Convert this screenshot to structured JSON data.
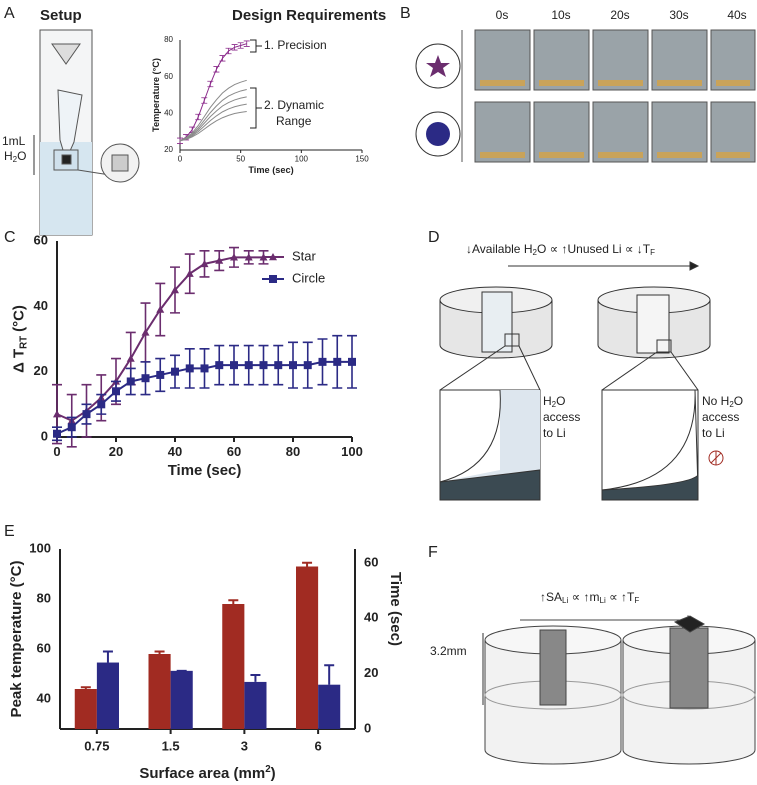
{
  "panels": {
    "labels": [
      "A",
      "B",
      "C",
      "D",
      "E",
      "F"
    ],
    "a": {
      "title": "Setup",
      "volume": "1mL",
      "water": [
        "H",
        "2",
        "O"
      ]
    },
    "b": {
      "times": [
        "0s",
        "10s",
        "20s",
        "30s",
        "40s"
      ]
    },
    "d": {
      "relation": [
        "↓Available H",
        "2",
        "O ∝ ↑Unused Li ∝ ↓T",
        "F"
      ],
      "left_note": {
        "line1": [
          "H",
          "2",
          "O"
        ],
        "line2": "access",
        "line3": "to Li"
      },
      "right_note": {
        "line1": [
          "No H",
          "2",
          "O"
        ],
        "line2": "access",
        "line3": "to Li"
      }
    },
    "f": {
      "relation": [
        "↑SA",
        "Li",
        " ∝ ↑m",
        "Li",
        " ∝ ↑T",
        "F"
      ],
      "height": "3.2mm"
    }
  },
  "chart_data": [
    {
      "type": "line",
      "title": "Design Requirements",
      "x_label": "Time (sec)",
      "y_label": "Temperature (°C)",
      "xlim": [
        0,
        150
      ],
      "xticks": [
        0,
        50,
        100,
        150
      ],
      "ylim": [
        20,
        80
      ],
      "yticks": [
        20,
        40,
        60,
        80
      ],
      "x": [
        0,
        5,
        10,
        15,
        20,
        25,
        30,
        35,
        40,
        45,
        50,
        55
      ],
      "series": [
        {
          "color": "#8b2a8b",
          "values": [
            25,
            27,
            31,
            38,
            47,
            56,
            64,
            70,
            74,
            76,
            77,
            78
          ],
          "errors": [
            1.5,
            1.5,
            1.5,
            1.5,
            1.5,
            1.5,
            1.5,
            1.5,
            1.5,
            1.5,
            1.5,
            1.5
          ]
        },
        {
          "color": "#8a8a8a",
          "values": [
            25,
            26.7,
            29.3,
            33.3,
            38.2,
            43.2,
            47.4,
            51.1,
            53.7,
            55.7,
            57,
            58
          ]
        },
        {
          "color": "#8a8a8a",
          "values": [
            25,
            26.4,
            28.6,
            32,
            36.2,
            40.4,
            44,
            47.1,
            49.4,
            51,
            52.2,
            53
          ]
        },
        {
          "color": "#8a8a8a",
          "values": [
            25,
            26.2,
            28.1,
            31,
            34.6,
            38.2,
            41.3,
            44,
            45.9,
            47.3,
            48.3,
            49
          ]
        },
        {
          "color": "#8a8a8a",
          "values": [
            25,
            26,
            27.6,
            30,
            33,
            36,
            38.6,
            40.8,
            42.4,
            43.6,
            44.4,
            45
          ]
        },
        {
          "color": "#8a8a8a",
          "values": [
            25,
            25.8,
            27.1,
            29,
            31.4,
            33.8,
            35.9,
            37.6,
            38.9,
            39.9,
            40.5,
            41
          ]
        }
      ],
      "annotations": [
        "1. Precision",
        "2. Dynamic",
        "Range"
      ]
    },
    {
      "type": "line",
      "x_label": "Time (sec)",
      "y_label": [
        "Δ T",
        "RT",
        " (°C)"
      ],
      "xlim": [
        0,
        100
      ],
      "xticks": [
        0,
        20,
        40,
        60,
        80,
        100
      ],
      "ylim": [
        0,
        60
      ],
      "yticks": [
        0,
        20,
        40,
        60
      ],
      "legend": "upper right",
      "series": [
        {
          "name": "Star",
          "color": "#6b2d6e",
          "marker": "triangle",
          "x": [
            0,
            5,
            10,
            15,
            20,
            25,
            30,
            35,
            40,
            45,
            50,
            55,
            60,
            65,
            70
          ],
          "values": [
            7,
            5,
            8,
            12,
            17,
            24,
            32,
            39,
            45,
            50,
            53,
            54,
            55,
            55,
            55
          ],
          "errors": [
            9,
            8,
            8,
            7,
            7,
            8,
            9,
            8,
            7,
            6,
            4,
            3,
            3,
            2,
            2
          ]
        },
        {
          "name": "Circle",
          "color": "#2b2a85",
          "marker": "square",
          "x": [
            0,
            5,
            10,
            15,
            20,
            25,
            30,
            35,
            40,
            45,
            50,
            55,
            60,
            65,
            70,
            75,
            80,
            85,
            90,
            95,
            100
          ],
          "values": [
            1,
            3,
            7,
            10,
            14,
            17,
            18,
            19,
            20,
            21,
            21,
            22,
            22,
            22,
            22,
            22,
            22,
            22,
            23,
            23,
            23
          ],
          "errors": [
            2,
            3,
            3,
            3,
            3,
            4,
            5,
            5,
            5,
            6,
            6,
            6,
            6,
            6,
            6,
            6,
            7,
            7,
            7,
            8,
            8
          ]
        }
      ]
    },
    {
      "type": "bar",
      "x_label": [
        "Surface area (mm",
        "2",
        ")"
      ],
      "y_label": "Peak temperature (°C)",
      "y2_label": "Time (sec)",
      "categories": [
        "0.75",
        "1.5",
        "3",
        "6"
      ],
      "ylim": [
        28,
        100
      ],
      "yticks": [
        40,
        60,
        80,
        100
      ],
      "y2lim": [
        0,
        65
      ],
      "y2ticks": [
        0,
        20,
        40,
        60
      ],
      "series": [
        {
          "color": "#a12b22",
          "values": [
            44,
            58,
            78,
            93
          ],
          "errors": [
            0.7,
            1,
            1.5,
            1.5
          ]
        },
        {
          "color": "#2b2a85",
          "axis": "y2",
          "values": [
            24,
            21,
            17,
            16
          ],
          "errors": [
            4,
            0,
            2.5,
            7
          ]
        }
      ]
    }
  ]
}
